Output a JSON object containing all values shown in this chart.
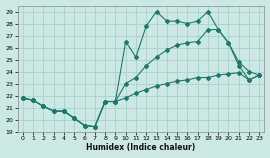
{
  "xlabel": "Humidex (Indice chaleur)",
  "bg_color": "#cce8e4",
  "grid_color": "#aacfcb",
  "line_color": "#1a7a6e",
  "xlim": [
    -0.5,
    23.5
  ],
  "ylim": [
    19,
    29.5
  ],
  "xticks": [
    0,
    1,
    2,
    3,
    4,
    5,
    6,
    7,
    8,
    9,
    10,
    11,
    12,
    13,
    14,
    15,
    16,
    17,
    18,
    19,
    20,
    21,
    22,
    23
  ],
  "yticks": [
    19,
    20,
    21,
    22,
    23,
    24,
    25,
    26,
    27,
    28,
    29
  ],
  "series1_x": [
    0,
    1,
    2,
    3,
    4,
    5,
    6,
    7,
    8,
    9,
    10,
    11,
    12,
    13,
    14,
    15,
    16,
    17,
    18,
    19,
    20,
    21,
    22,
    23
  ],
  "series1_y": [
    21.8,
    21.6,
    21.1,
    20.7,
    20.7,
    20.1,
    19.5,
    19.4,
    21.5,
    21.5,
    21.8,
    22.2,
    22.5,
    22.8,
    23.0,
    23.2,
    23.3,
    23.5,
    23.5,
    23.7,
    23.8,
    23.9,
    23.3,
    23.7
  ],
  "series2_x": [
    0,
    1,
    2,
    3,
    4,
    5,
    6,
    7,
    8,
    9,
    10,
    11,
    12,
    13,
    14,
    15,
    16,
    17,
    18,
    19,
    20,
    21,
    22,
    23
  ],
  "series2_y": [
    21.8,
    21.6,
    21.1,
    20.7,
    20.7,
    20.1,
    19.5,
    19.4,
    21.5,
    21.5,
    26.5,
    25.2,
    27.8,
    29.0,
    28.2,
    28.2,
    28.0,
    28.2,
    29.0,
    27.5,
    26.4,
    24.8,
    24.0,
    23.7
  ],
  "series3_x": [
    0,
    1,
    2,
    3,
    4,
    5,
    6,
    7,
    8,
    9,
    10,
    11,
    12,
    13,
    14,
    15,
    16,
    17,
    18,
    19,
    20,
    21,
    22,
    23
  ],
  "series3_y": [
    21.8,
    21.6,
    21.1,
    20.7,
    20.7,
    20.1,
    19.5,
    19.4,
    21.5,
    21.5,
    23.0,
    23.5,
    24.5,
    25.2,
    25.8,
    26.2,
    26.4,
    26.5,
    27.5,
    27.5,
    26.4,
    24.5,
    23.3,
    23.7
  ]
}
